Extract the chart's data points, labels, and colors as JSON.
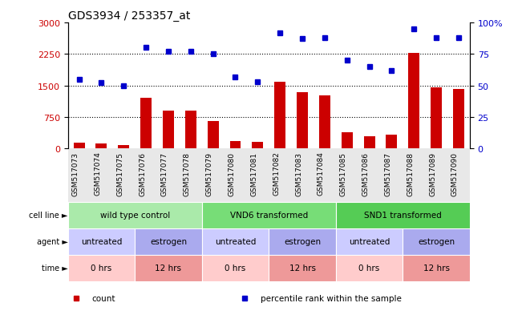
{
  "title": "GDS3934 / 253357_at",
  "samples": [
    "GSM517073",
    "GSM517074",
    "GSM517075",
    "GSM517076",
    "GSM517077",
    "GSM517078",
    "GSM517079",
    "GSM517080",
    "GSM517081",
    "GSM517082",
    "GSM517083",
    "GSM517084",
    "GSM517085",
    "GSM517086",
    "GSM517087",
    "GSM517088",
    "GSM517089",
    "GSM517090"
  ],
  "bar_values": [
    130,
    120,
    80,
    1200,
    900,
    900,
    650,
    180,
    160,
    1580,
    1350,
    1270,
    380,
    300,
    330,
    2280,
    1460,
    1420
  ],
  "dot_values": [
    55,
    52,
    50,
    80,
    77,
    77,
    75,
    57,
    53,
    92,
    87,
    88,
    70,
    65,
    62,
    95,
    88,
    88
  ],
  "bar_color": "#cc0000",
  "dot_color": "#0000cc",
  "ylim_left": [
    0,
    3000
  ],
  "yticks_left": [
    0,
    750,
    1500,
    2250,
    3000
  ],
  "ylim_right": [
    0,
    100
  ],
  "yticks_right": [
    0,
    25,
    50,
    75,
    100
  ],
  "ylabel_left_color": "#cc0000",
  "ylabel_right_color": "#0000cc",
  "bg_color": "#ffffff",
  "cell_line_groups": [
    {
      "label": "wild type control",
      "start": 0,
      "end": 6,
      "color": "#aaeaaa"
    },
    {
      "label": "VND6 transformed",
      "start": 6,
      "end": 12,
      "color": "#77dd77"
    },
    {
      "label": "SND1 transformed",
      "start": 12,
      "end": 18,
      "color": "#55cc55"
    }
  ],
  "agent_groups": [
    {
      "label": "untreated",
      "start": 0,
      "end": 3,
      "color": "#ccccff"
    },
    {
      "label": "estrogen",
      "start": 3,
      "end": 6,
      "color": "#aaaaee"
    },
    {
      "label": "untreated",
      "start": 6,
      "end": 9,
      "color": "#ccccff"
    },
    {
      "label": "estrogen",
      "start": 9,
      "end": 12,
      "color": "#aaaaee"
    },
    {
      "label": "untreated",
      "start": 12,
      "end": 15,
      "color": "#ccccff"
    },
    {
      "label": "estrogen",
      "start": 15,
      "end": 18,
      "color": "#aaaaee"
    }
  ],
  "time_groups": [
    {
      "label": "0 hrs",
      "start": 0,
      "end": 3,
      "color": "#ffcccc"
    },
    {
      "label": "12 hrs",
      "start": 3,
      "end": 6,
      "color": "#ee9999"
    },
    {
      "label": "0 hrs",
      "start": 6,
      "end": 9,
      "color": "#ffcccc"
    },
    {
      "label": "12 hrs",
      "start": 9,
      "end": 12,
      "color": "#ee9999"
    },
    {
      "label": "0 hrs",
      "start": 12,
      "end": 15,
      "color": "#ffcccc"
    },
    {
      "label": "12 hrs",
      "start": 15,
      "end": 18,
      "color": "#ee9999"
    }
  ],
  "row_labels": [
    "cell line",
    "agent",
    "time"
  ],
  "legend_items": [
    {
      "color": "#cc0000",
      "label": "count"
    },
    {
      "color": "#0000cc",
      "label": "percentile rank within the sample"
    }
  ]
}
